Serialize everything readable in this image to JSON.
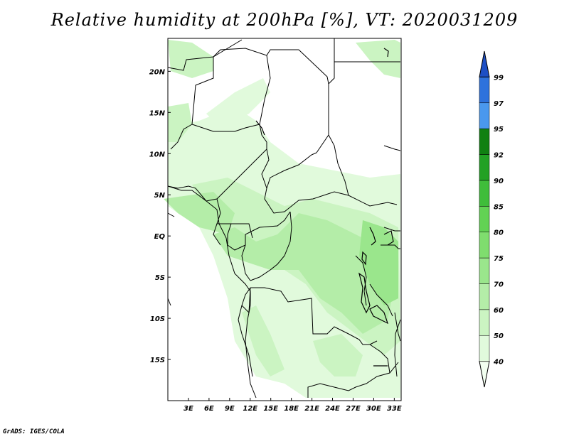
{
  "title": "Relative humidity at 200hPa [%], VT: 2020031209",
  "credit": "GrADS: IGES/COLA",
  "map": {
    "lon_range": [
      0,
      34
    ],
    "lat_range": [
      -20,
      24
    ],
    "x_ticks": [
      "3E",
      "6E",
      "9E",
      "12E",
      "15E",
      "18E",
      "21E",
      "24E",
      "27E",
      "30E",
      "33E"
    ],
    "y_ticks": [
      "20N",
      "15N",
      "10N",
      "5N",
      "EQ",
      "5S",
      "10S",
      "15S"
    ]
  },
  "colorbar": {
    "levels": [
      "40",
      "50",
      "60",
      "70",
      "75",
      "80",
      "85",
      "90",
      "92",
      "95",
      "97",
      "99"
    ],
    "colors": [
      "#f2fff0",
      "#e1fadc",
      "#cbf4c2",
      "#b4eda8",
      "#9ae68c",
      "#7fdd6e",
      "#62d254",
      "#3fbd3a",
      "#22a124",
      "#108012",
      "#4a98ee",
      "#2e72dc",
      "#1d4fc4"
    ]
  }
}
